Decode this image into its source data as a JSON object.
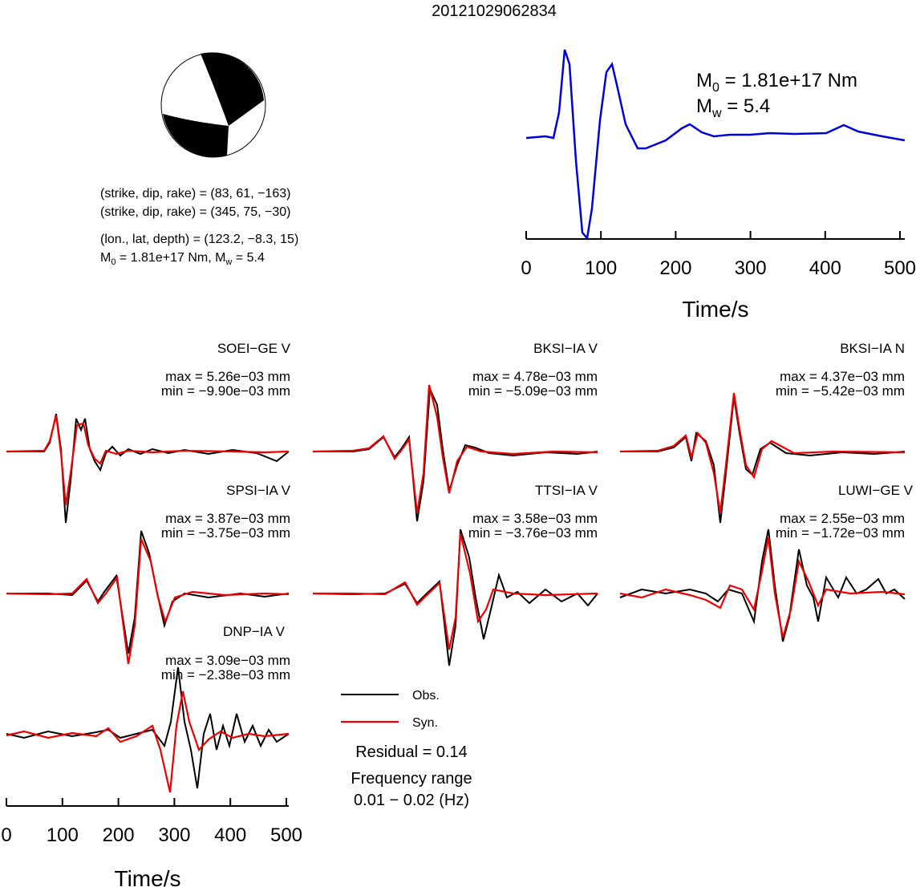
{
  "title": "20121029062834",
  "mechanism": {
    "plane1": "(strike, dip, rake) = (83, 61, −163)",
    "plane2": "(strike, dip, rake) = (345, 75, −30)",
    "location": "(lon., lat, depth) = (123.2, −8.3, 15)",
    "moment": {
      "m0_symbol": "M",
      "m0_sub": "0",
      "m0_text": " = 1.81e+17 Nm, ",
      "mw_symbol": "M",
      "mw_sub": "w",
      "mw_text": " = 5.4"
    }
  },
  "stf": {
    "m0_symbol": "M",
    "m0_sub": "0",
    "m0_text": " = 1.81e+17 Nm",
    "mw_symbol": "M",
    "mw_sub": "w",
    "mw_text": " = 5.4",
    "xlim": [
      0,
      500
    ],
    "xticks": [
      0,
      100,
      200,
      300,
      400,
      500
    ],
    "xlabel": "Time/s"
  },
  "traces": [
    {
      "station": "SOEI−GE V",
      "max": "max = 5.26e−03 mm",
      "min": "min = −9.90e−03 mm"
    },
    {
      "station": "BKSI−IA V",
      "max": "max = 4.78e−03 mm",
      "min": "min = −5.09e−03 mm"
    },
    {
      "station": "BKSI−IA N",
      "max": "max = 4.37e−03 mm",
      "min": "min = −5.42e−03 mm"
    },
    {
      "station": "SPSI−IA V",
      "max": "max = 3.87e−03 mm",
      "min": "min = −3.75e−03 mm"
    },
    {
      "station": "TTSI−IA V",
      "max": "max = 3.58e−03 mm",
      "min": "min = −3.76e−03 mm"
    },
    {
      "station": "LUWI−GE V",
      "max": "max = 2.55e−03 mm",
      "min": "min = −1.72e−03 mm"
    },
    {
      "station": "DNP−IA V",
      "max": "max = 3.09e−03 mm",
      "min": "min = −2.38e−03 mm"
    }
  ],
  "legend": {
    "obs": "Obs.",
    "syn": "Syn.",
    "residual": "Residual = 0.14",
    "freq_title": "Frequency range",
    "freq_range": "0.01 − 0.02 (Hz)"
  },
  "trace_axis": {
    "xlim": [
      0,
      500
    ],
    "xticks": [
      0,
      100,
      200,
      300,
      400,
      500
    ],
    "xlabel": "Time/s"
  }
}
